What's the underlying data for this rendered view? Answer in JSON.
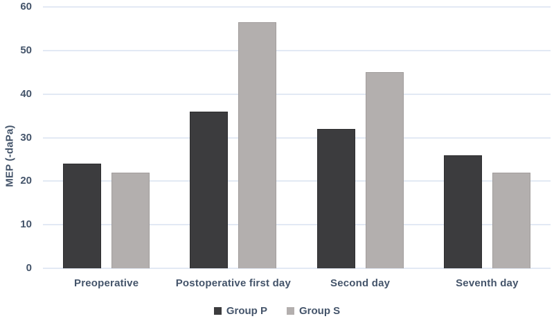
{
  "chart_data": {
    "type": "bar",
    "title": "",
    "xlabel": "",
    "ylabel": "MEP (-daPa)",
    "ylim": [
      0,
      60
    ],
    "yticks": [
      0,
      10,
      20,
      30,
      40,
      50,
      60
    ],
    "grid": true,
    "legend_position": "bottom",
    "categories": [
      "Preoperative",
      "Postoperative first day",
      "Second day",
      "Seventh day"
    ],
    "series": [
      {
        "name": "Group P",
        "color": "#3c3c3e",
        "border": "#2d2d2f",
        "values": [
          24,
          36,
          32,
          26
        ]
      },
      {
        "name": "Group S",
        "color": "#b3afae",
        "border": "#a19d9c",
        "values": [
          22,
          56.5,
          45,
          22
        ]
      }
    ]
  },
  "colors": {
    "text": "#44546a",
    "gridline": "#e2e9f4",
    "background": "#ffffff"
  }
}
